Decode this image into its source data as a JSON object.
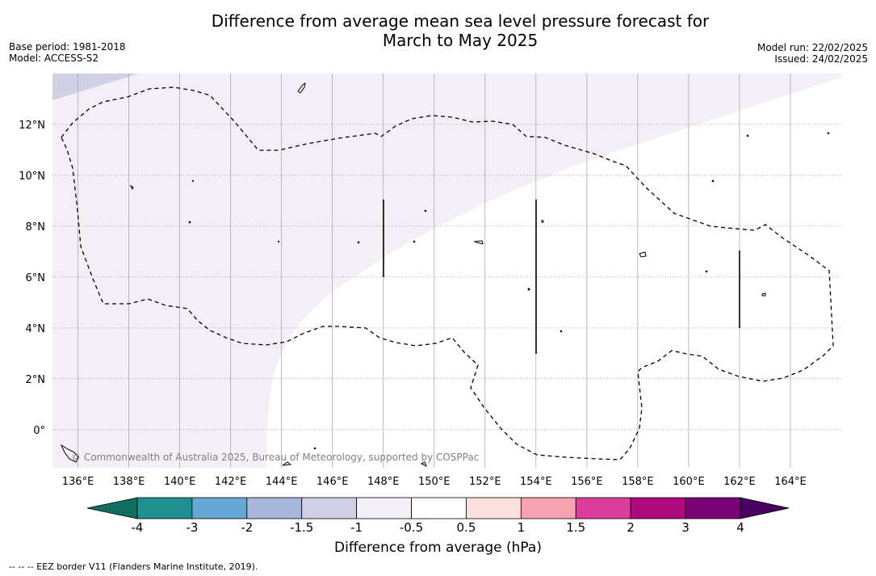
{
  "title_line1": "Difference from average mean sea level pressure forecast for",
  "title_line2": "March to May 2025",
  "base_period": "Base period: 1981-2018",
  "model": "Model: ACCESS-S2",
  "model_run": "Model run: 22/02/2025",
  "issued": "Issued: 24/02/2025",
  "copyright": "© Commonwealth of Australia 2025, Bureau of Meteorology, supported by COSPPac",
  "footnote": "--  --  -- EEZ border V11 (Flanders Marine Institute, 2019).",
  "colorbar": {
    "title": "Difference from average (hPa)",
    "ticks": [
      "-4",
      "-3",
      "-2",
      "-1.5",
      "-1",
      "-0.5",
      "0.5",
      "1",
      "1.5",
      "2",
      "3",
      "4"
    ],
    "colors": [
      "#1e9090",
      "#66a8d4",
      "#a6b8dc",
      "#d0d0e6",
      "#f4eef7",
      "#ffffff",
      "#fde0e0",
      "#f8a2b4",
      "#dc3c9a",
      "#ae0a7e",
      "#7a0274"
    ],
    "low_extend_color": "#0f6e60",
    "high_extend_color": "#4a0060"
  },
  "map": {
    "lon_labels": [
      "136°E",
      "138°E",
      "140°E",
      "142°E",
      "144°E",
      "146°E",
      "148°E",
      "150°E",
      "152°E",
      "154°E",
      "156°E",
      "158°E",
      "160°E",
      "162°E",
      "164°E"
    ],
    "lat_labels": [
      "12°N",
      "10°N",
      "8°N",
      "6°N",
      "4°N",
      "2°N",
      "0°"
    ],
    "lon_range": [
      135,
      166
    ],
    "lat_range": [
      -1.5,
      14
    ],
    "region_colors": {
      "light_lavender": "#f4eef7",
      "lavender": "#d0d0e6"
    }
  }
}
